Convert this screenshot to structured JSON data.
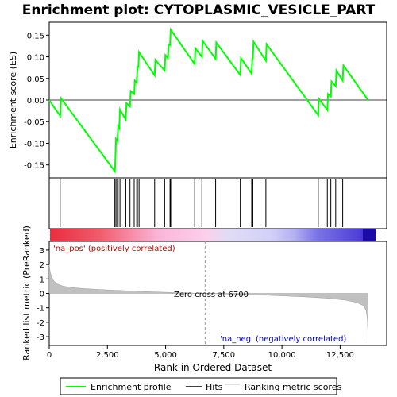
{
  "chart_data": {
    "type": "line",
    "title": "Enrichment plot: CYTOPLASMIC_VESICLE_PART",
    "xlabel": "Rank in Ordered Dataset",
    "xlim": [
      0,
      14500
    ],
    "x_ticks": [
      0,
      2500,
      5000,
      7500,
      10000,
      12500
    ],
    "x_tick_labels": [
      "0",
      "2,500",
      "5,000",
      "7,500",
      "10,000",
      "12,500"
    ],
    "panels": {
      "enrichment": {
        "ylabel": "Enrichment score (ES)",
        "ylim": [
          -0.18,
          0.18
        ],
        "y_ticks": [
          0.15,
          0.1,
          0.05,
          0.0,
          -0.05,
          -0.1,
          -0.15
        ],
        "y_tick_labels": [
          "0.15",
          "0.10",
          "0.05",
          "0.00",
          "-0.05",
          "-0.10",
          "-0.15"
        ],
        "color": "#00ff00",
        "points": [
          [
            0,
            0.0
          ],
          [
            470,
            -0.037
          ],
          [
            510,
            0.004
          ],
          [
            2820,
            -0.165
          ],
          [
            2850,
            -0.127
          ],
          [
            2870,
            -0.09
          ],
          [
            2930,
            -0.095
          ],
          [
            2960,
            -0.06
          ],
          [
            3010,
            -0.065
          ],
          [
            3040,
            -0.022
          ],
          [
            3290,
            -0.045
          ],
          [
            3320,
            -0.007
          ],
          [
            3470,
            -0.015
          ],
          [
            3500,
            0.021
          ],
          [
            3650,
            0.014
          ],
          [
            3680,
            0.045
          ],
          [
            3760,
            0.041
          ],
          [
            3790,
            0.077
          ],
          [
            3830,
            0.076
          ],
          [
            3860,
            0.111
          ],
          [
            4530,
            0.057
          ],
          [
            4560,
            0.093
          ],
          [
            4960,
            0.068
          ],
          [
            4990,
            0.104
          ],
          [
            5100,
            0.097
          ],
          [
            5130,
            0.128
          ],
          [
            5190,
            0.127
          ],
          [
            5220,
            0.163
          ],
          [
            6250,
            0.083
          ],
          [
            6280,
            0.12
          ],
          [
            6560,
            0.1
          ],
          [
            6590,
            0.137
          ],
          [
            7150,
            0.095
          ],
          [
            7180,
            0.133
          ],
          [
            8210,
            0.058
          ],
          [
            8240,
            0.097
          ],
          [
            8700,
            0.061
          ],
          [
            8730,
            0.098
          ],
          [
            8750,
            0.095
          ],
          [
            8780,
            0.135
          ],
          [
            9310,
            0.091
          ],
          [
            9340,
            0.129
          ],
          [
            11560,
            -0.035
          ],
          [
            11590,
            0.003
          ],
          [
            11950,
            -0.023
          ],
          [
            11980,
            0.014
          ],
          [
            12100,
            0.008
          ],
          [
            12130,
            0.043
          ],
          [
            12310,
            0.032
          ],
          [
            12340,
            0.068
          ],
          [
            12610,
            0.045
          ],
          [
            12640,
            0.08
          ],
          [
            13700,
            0.0
          ]
        ]
      },
      "hits": {
        "positions": [
          470,
          2820,
          2870,
          2930,
          2960,
          3040,
          3290,
          3470,
          3650,
          3760,
          3790,
          3860,
          4530,
          4960,
          5100,
          5190,
          5220,
          6250,
          6560,
          7150,
          8210,
          8700,
          8750,
          9310,
          11560,
          11950,
          12100,
          12310,
          12610
        ]
      },
      "ranked_metric": {
        "ylabel": "Ranked list metric (PreRanked)",
        "ylim": [
          -3.6,
          3.6
        ],
        "y_ticks": [
          3,
          2,
          1,
          0,
          -1,
          -2,
          -3
        ],
        "y_tick_labels": [
          "3",
          "2",
          "1",
          "0",
          "-1",
          "-2",
          "-3"
        ],
        "curve": [
          [
            0,
            2.0
          ],
          [
            40,
            1.5
          ],
          [
            100,
            1.15
          ],
          [
            200,
            0.85
          ],
          [
            350,
            0.65
          ],
          [
            600,
            0.5
          ],
          [
            1000,
            0.4
          ],
          [
            1500,
            0.33
          ],
          [
            2500,
            0.24
          ],
          [
            4000,
            0.13
          ],
          [
            5500,
            0.05
          ],
          [
            6700,
            0.0
          ],
          [
            8000,
            -0.06
          ],
          [
            9500,
            -0.14
          ],
          [
            11000,
            -0.24
          ],
          [
            12000,
            -0.34
          ],
          [
            12700,
            -0.46
          ],
          [
            13200,
            -0.62
          ],
          [
            13500,
            -0.85
          ],
          [
            13620,
            -1.2
          ],
          [
            13670,
            -1.8
          ],
          [
            13700,
            -3.4
          ]
        ],
        "zero_cross_rank": 6700,
        "zero_cross_label": "Zero cross at 6700",
        "pos_label": "'na_pos' (positively correlated)",
        "neg_label": "'na_neg' (negatively correlated)"
      }
    },
    "legend": {
      "position": "bottom",
      "entries": [
        {
          "label": "Enrichment profile",
          "color": "#00ff00"
        },
        {
          "label": "Hits",
          "color": "#000000"
        },
        {
          "label": "Ranking metric scores",
          "color": "#c0c0c0"
        }
      ]
    }
  }
}
